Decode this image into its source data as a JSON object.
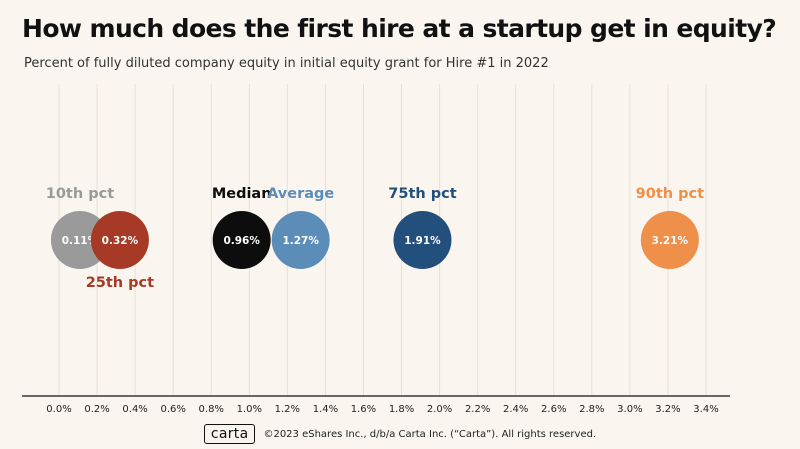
{
  "header": {
    "title": "How much does the first hire at a startup get in equity?",
    "subtitle": "Percent of fully diluted company equity in initial equity grant for Hire #1 in 2022"
  },
  "footer": {
    "logo": "carta",
    "copyright": "©2023 eShares Inc., d/b/a Carta Inc. (“Carta”). All rights reserved."
  },
  "chart_data": {
    "type": "scatter",
    "title": "How much does the first hire at a startup get in equity?",
    "subtitle": "Percent of fully diluted company equity in initial equity grant for Hire #1 in 2022",
    "xlabel": "",
    "ylabel": "",
    "xlim": [
      0,
      3.4
    ],
    "x_ticks": [
      0.0,
      0.2,
      0.4,
      0.6,
      0.8,
      1.0,
      1.2,
      1.4,
      1.6,
      1.8,
      2.0,
      2.2,
      2.4,
      2.6,
      2.8,
      3.0,
      3.2,
      3.4
    ],
    "x_tick_labels": [
      "0.0%",
      "0.2%",
      "0.4%",
      "0.6%",
      "0.8%",
      "1.0%",
      "1.2%",
      "1.4%",
      "1.6%",
      "1.8%",
      "2.0%",
      "2.2%",
      "2.4%",
      "2.6%",
      "2.8%",
      "3.0%",
      "3.2%",
      "3.4%"
    ],
    "grid": true,
    "points": [
      {
        "name": "10th pct",
        "value": 0.11,
        "label": "0.11%",
        "color": "#9a9a9a",
        "label_position": "above"
      },
      {
        "name": "25th pct",
        "value": 0.32,
        "label": "0.32%",
        "color": "#a63a26",
        "label_position": "below"
      },
      {
        "name": "Median",
        "value": 0.96,
        "label": "0.96%",
        "color": "#0d0d0d",
        "label_position": "above"
      },
      {
        "name": "Average",
        "value": 1.27,
        "label": "1.27%",
        "color": "#5b8db8",
        "label_position": "above"
      },
      {
        "name": "75th pct",
        "value": 1.91,
        "label": "1.91%",
        "color": "#234f7c",
        "label_position": "above"
      },
      {
        "name": "90th pct",
        "value": 3.21,
        "label": "3.21%",
        "color": "#ee9049",
        "label_position": "above"
      }
    ]
  }
}
